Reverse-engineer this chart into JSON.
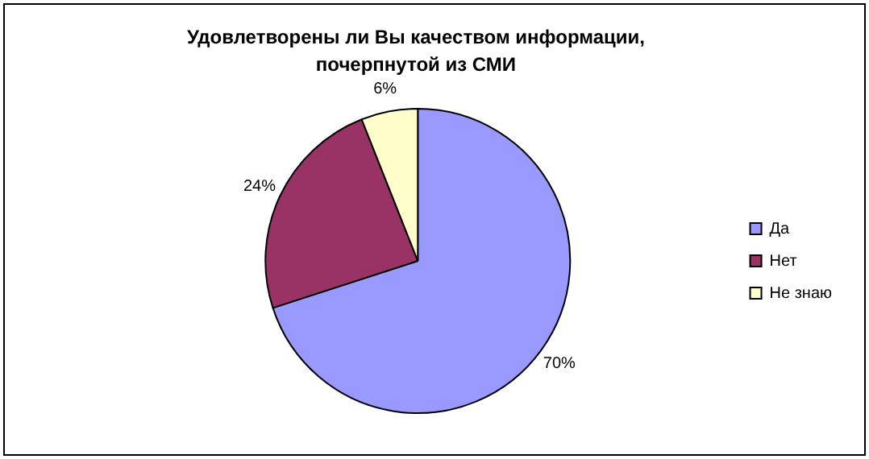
{
  "chart_data": {
    "type": "pie",
    "title": "Удовлетворены ли Вы качеством информации, почерпнутой из СМИ",
    "categories": [
      "Да",
      "Нет",
      "Не знаю"
    ],
    "values": [
      70,
      24,
      6
    ],
    "value_labels": [
      "70%",
      "24%",
      "6%"
    ],
    "colors": [
      "#9999ff",
      "#993366",
      "#ffffcc"
    ],
    "legend": "right"
  }
}
